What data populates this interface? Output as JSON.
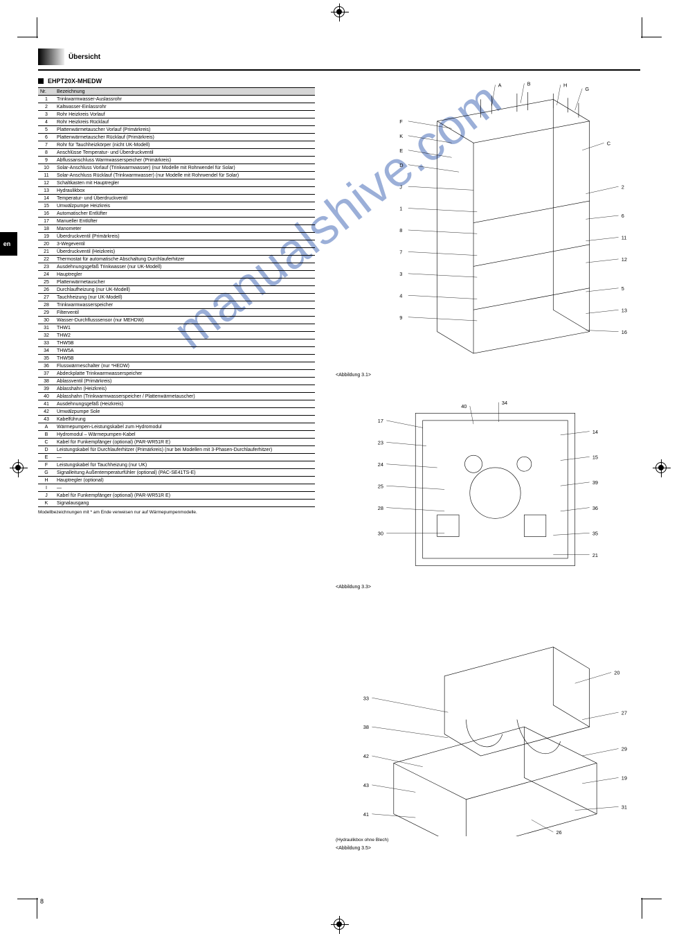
{
  "crop": {
    "color": "#000"
  },
  "header": {
    "section_title": "Übersicht"
  },
  "en_tab": "en",
  "page_number": "8",
  "subheading": "EHPT20X-MHEDW",
  "tableHeaders": {
    "num": "Nr.",
    "name": "Bezeichnung"
  },
  "model_note": "Modellbezeichnungen mit * am Ende verweisen nur auf Wärmepumpenmodelle.",
  "watermark_text": "manualshive.com",
  "figures": {
    "fig1_caption": "<Abbildung 3.1>",
    "fig2_caption": "<Abbildung 3.3>",
    "fig3_caption": "<Abbildung 3.5>",
    "fig3_note": "(Hydraulikbox ohne Blech)"
  },
  "fig1_labels": [
    "F",
    "K",
    "E",
    "D",
    "J",
    "1",
    "8",
    "7",
    "3",
    "4",
    "9",
    "A",
    "B",
    "H",
    "G",
    "C",
    "2",
    "6",
    "11",
    "12",
    "5",
    "13",
    "16"
  ],
  "fig2_labels": [
    "17",
    "23",
    "24",
    "25",
    "28",
    "30",
    "40",
    "34",
    "14",
    "15",
    "39",
    "36",
    "35",
    "21"
  ],
  "fig3_labels": [
    "33",
    "38",
    "42",
    "43",
    "41",
    "20",
    "27",
    "29",
    "19",
    "31",
    "26"
  ],
  "parts": [
    {
      "n": "1",
      "name": "Trinkwarmwasser-Auslassrohr"
    },
    {
      "n": "2",
      "name": "Kaltwasser-Einlassrohr"
    },
    {
      "n": "3",
      "name": "Rohr Heizkreis Vorlauf"
    },
    {
      "n": "4",
      "name": "Rohr Heizkreis Rücklauf"
    },
    {
      "n": "5",
      "name": "Plattenwärmetauscher Vorlauf (Primärkreis)"
    },
    {
      "n": "6",
      "name": "Plattenwärmetauscher Rücklauf (Primärkreis)"
    },
    {
      "n": "7",
      "name": "Rohr für Tauchheizkörper (nicht UK-Modell)"
    },
    {
      "n": "8",
      "name": "Anschlüsse Temperatur- und Überdruckventil"
    },
    {
      "n": "9",
      "name": "Abflussanschluss Warmwasserspeicher (Primärkreis)"
    },
    {
      "n": "10",
      "name": "Solar-Anschluss Vorlauf (Trinkwarmwasser) (nur Modelle mit Rohrwendel für Solar)"
    },
    {
      "n": "11",
      "name": "Solar-Anschluss Rücklauf (Trinkwarmwasser) (nur Modelle mit Rohrwendel für Solar)"
    },
    {
      "n": "12",
      "name": "Schaltkasten mit Hauptregler"
    },
    {
      "n": "13",
      "name": "Hydraulikbox"
    },
    {
      "n": "14",
      "name": "Temperatur- und Überdruckventil"
    },
    {
      "n": "15",
      "name": "Umwälzpumpe Heizkreis"
    },
    {
      "n": "16",
      "name": "Automatischer Entlüfter"
    },
    {
      "n": "17",
      "name": "Manueller Entlüfter"
    },
    {
      "n": "18",
      "name": "Manometer"
    },
    {
      "n": "19",
      "name": "Überdruckventil (Primärkreis)"
    },
    {
      "n": "20",
      "name": "3-Wegeventil"
    },
    {
      "n": "21",
      "name": "Überdruckventil (Heizkreis)"
    },
    {
      "n": "22",
      "name": "Thermostat für automatische Abschaltung Durchlauferhitzer"
    },
    {
      "n": "23",
      "name": "Ausdehnungsgefäß Trinkwasser (nur UK-Modell)"
    },
    {
      "n": "24",
      "name": "Hauptregler"
    },
    {
      "n": "25",
      "name": "Plattenwärmetauscher"
    },
    {
      "n": "26",
      "name": "Durchlaufheizung (nur UK-Modell)"
    },
    {
      "n": "27",
      "name": "Tauchheizung (nur UK-Modell)"
    },
    {
      "n": "28",
      "name": "Trinkwarmwasserspeicher"
    },
    {
      "n": "29",
      "name": "Filterventil"
    },
    {
      "n": "30",
      "name": "Wasser-Durchflusssensor (nur MEHDW)"
    },
    {
      "n": "31",
      "name": "THW1"
    },
    {
      "n": "32",
      "name": "THW2"
    },
    {
      "n": "33",
      "name": "THW5B"
    },
    {
      "n": "34",
      "name": "THW5A"
    },
    {
      "n": "35",
      "name": "THW5B"
    },
    {
      "n": "36",
      "name": "Flusswärmeschalter (nur *HEDW)"
    },
    {
      "n": "37",
      "name": "Abdeckplatte Trinkwarmwasserspeicher"
    },
    {
      "n": "38",
      "name": "Ablassventil (Primärkreis)"
    },
    {
      "n": "39",
      "name": "Ablasshahn (Heizkreis)"
    },
    {
      "n": "40",
      "name": "Ablasshahn (Trinkwarmwasserspeicher / Plattenwärmetauscher)"
    },
    {
      "n": "41",
      "name": "Ausdehnungsgefäß (Heizkreis)"
    },
    {
      "n": "42",
      "name": "Umwälzpumpe Sole"
    },
    {
      "n": "43",
      "name": "Kabelführung"
    },
    {
      "n": "A",
      "name": "Wärmepumpen-Leistungskabel zum Hydromodul"
    },
    {
      "n": "B",
      "name": "Hydromodul – Wärmepumpen-Kabel"
    },
    {
      "n": "C",
      "name": "Kabel für Funkempfänger (optional) (PAR-WR51R E)"
    },
    {
      "n": "D",
      "name": "Leistungskabel für Durchlauferhitzer (Primärkreis) (nur bei Modellen mit 3-Phasen-Durchlauferhitzer)"
    },
    {
      "n": "E",
      "name": "—"
    },
    {
      "n": "F",
      "name": "Leistungskabel für Tauchheizung (nur UK)"
    },
    {
      "n": "G",
      "name": "Signalleitung Außentemperaturfühler (optional) (PAC-SE41TS-E)"
    },
    {
      "n": "H",
      "name": "Hauptregler (optional)"
    },
    {
      "n": "I",
      "name": "—"
    },
    {
      "n": "J",
      "name": "Kabel für Funkempfänger (optional) (PAR-WR51R E)"
    },
    {
      "n": "K",
      "name": "Signalausgang"
    }
  ]
}
